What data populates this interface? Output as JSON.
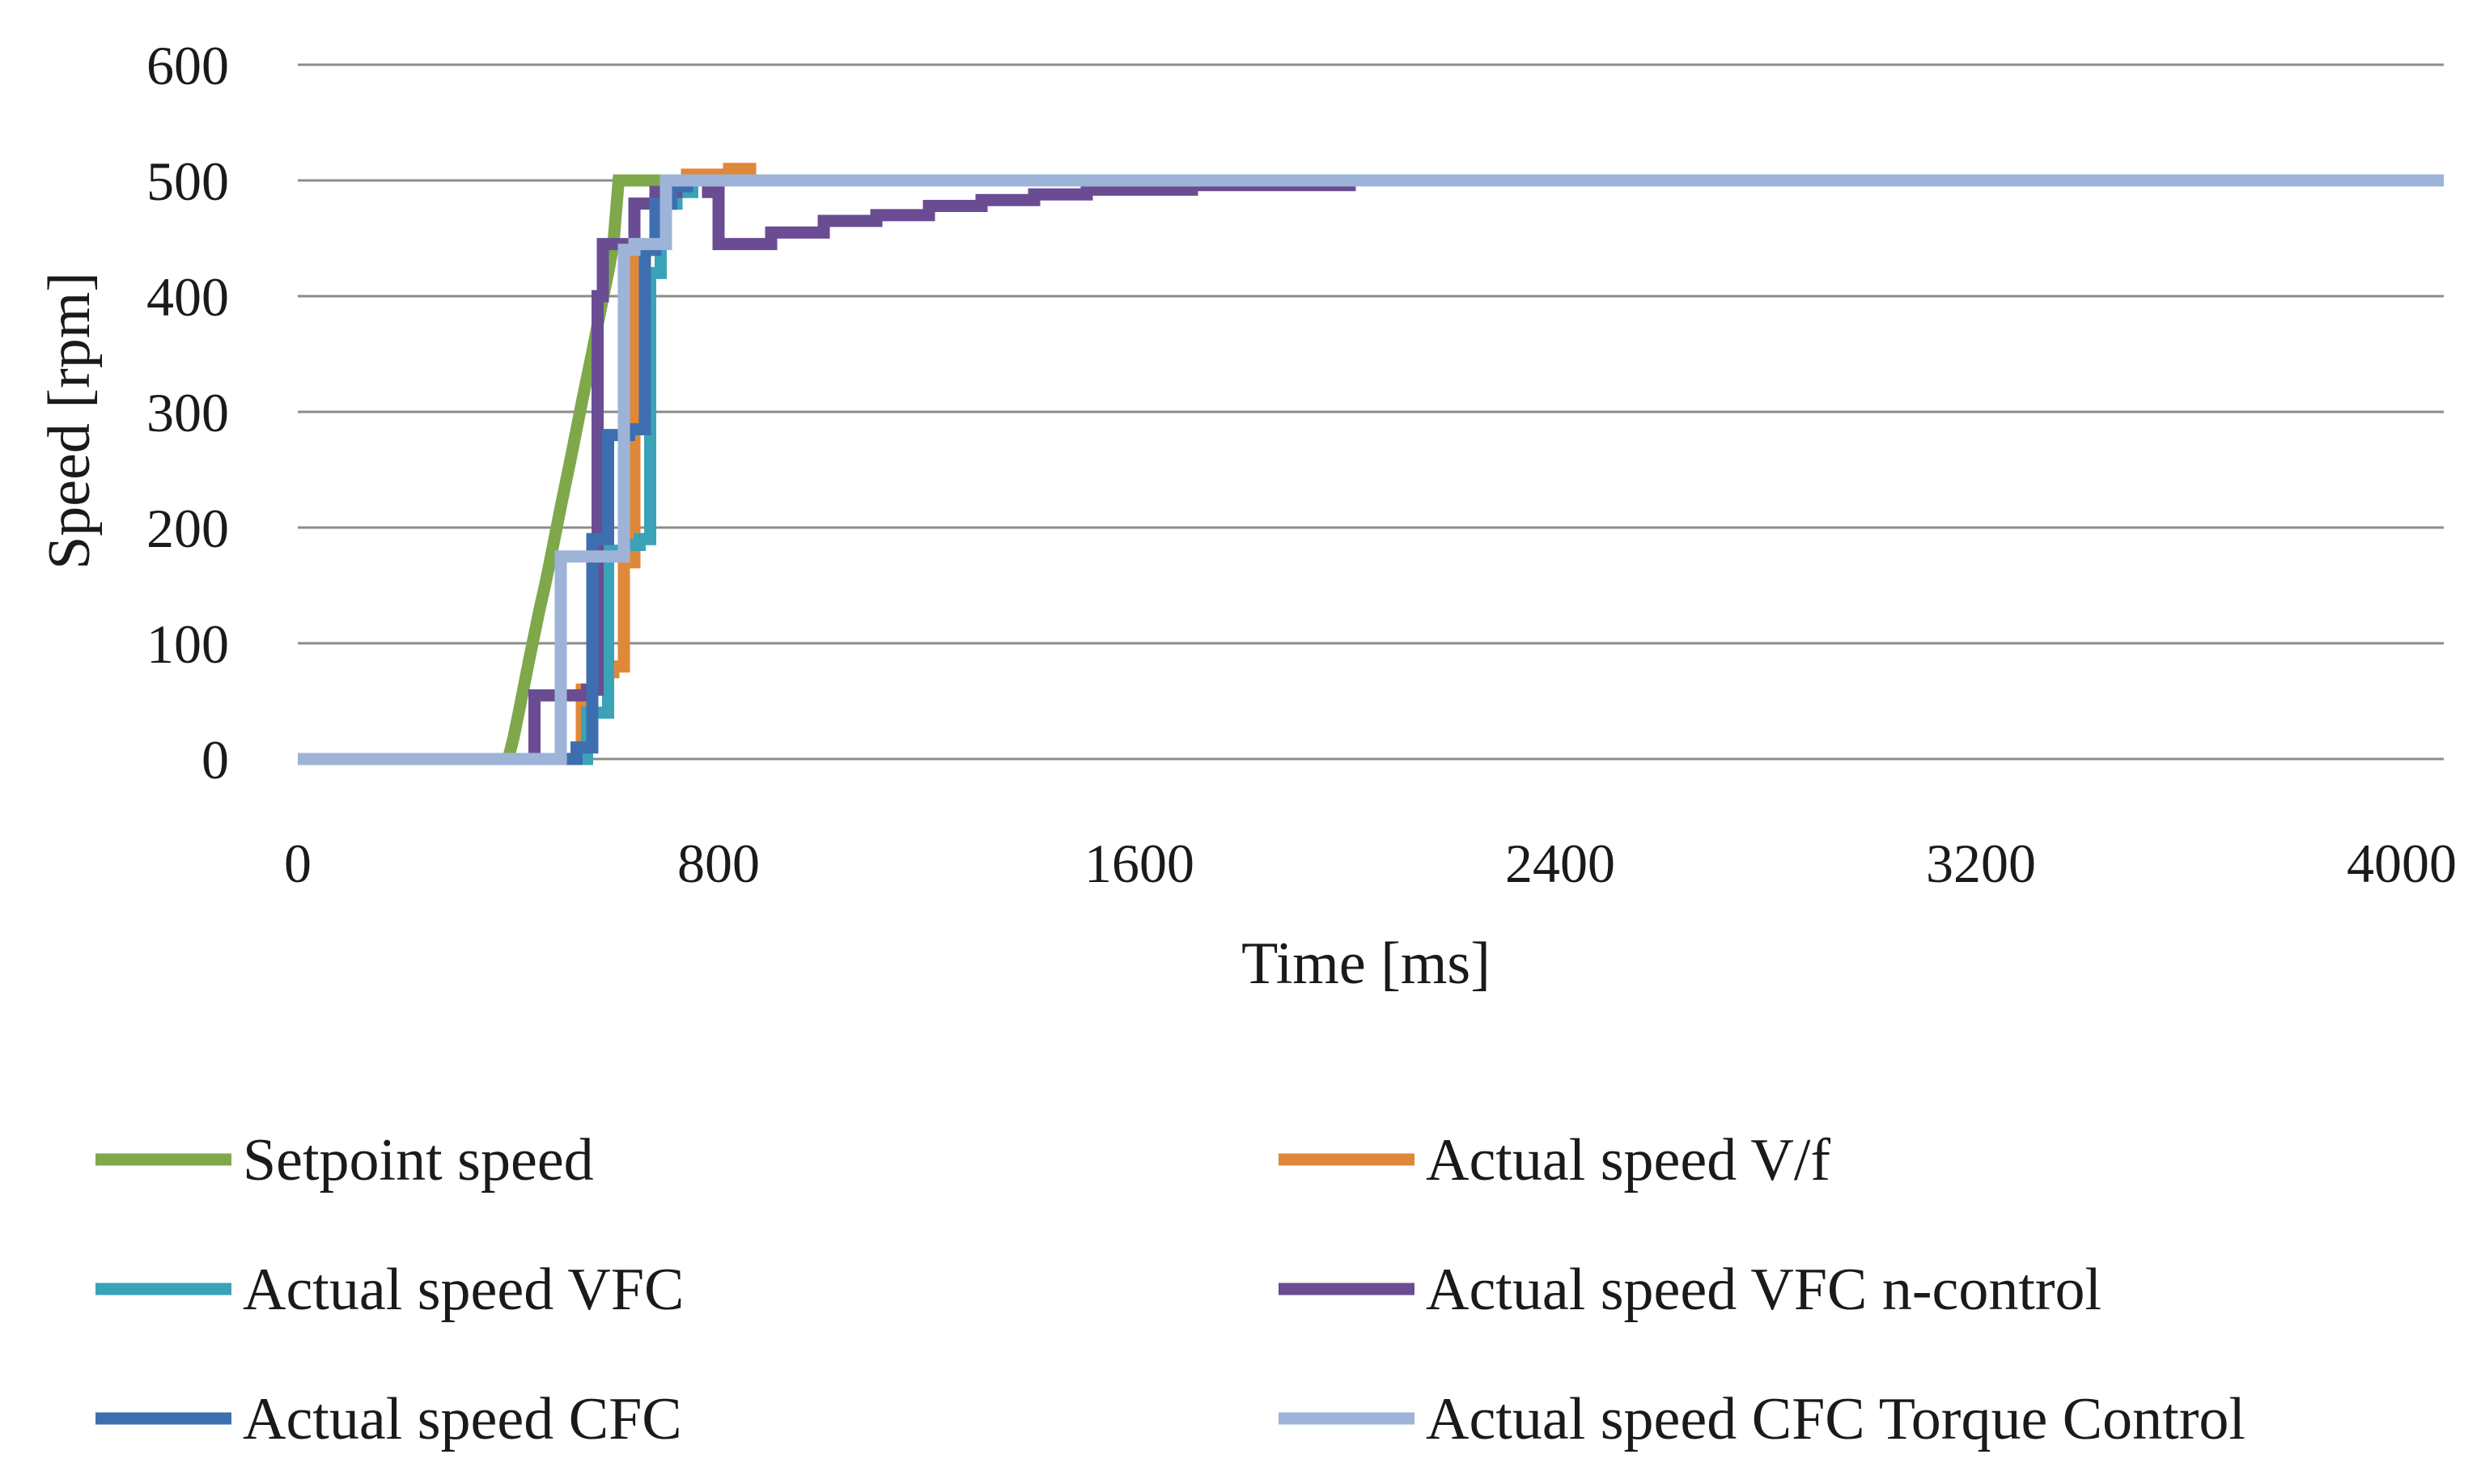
{
  "chart_data": {
    "type": "line",
    "title": "",
    "xlabel": "Time [ms]",
    "ylabel": "Speed [rpm]",
    "xlim": [
      0,
      4080
    ],
    "ylim": [
      0,
      600
    ],
    "xticks": [
      0,
      800,
      1600,
      2400,
      3200,
      4000
    ],
    "yticks": [
      0,
      100,
      200,
      300,
      400,
      500,
      600
    ],
    "grid": "horizontal",
    "legend_position": "bottom",
    "series": [
      {
        "name": "Setpoint speed",
        "color": "#7fa84a",
        "x": [
          0,
          400,
          410,
          420,
          430,
          440,
          450,
          460,
          470,
          480,
          490,
          500,
          510,
          520,
          530,
          540,
          550,
          560,
          570,
          580,
          590,
          600,
          610,
          4080
        ],
        "y": [
          0,
          0,
          18,
          40,
          63,
          86,
          108,
          130,
          150,
          172,
          195,
          218,
          240,
          262,
          285,
          308,
          330,
          352,
          375,
          398,
          420,
          445,
          500,
          500
        ]
      },
      {
        "name": "Actual speed V/f",
        "color": "#e0883a",
        "x": [
          0,
          540,
          540,
          580,
          580,
          600,
          600,
          620,
          620,
          640,
          640,
          680,
          680,
          700,
          700,
          720,
          720,
          740,
          740,
          820,
          820,
          860,
          860,
          4080
        ],
        "y": [
          0,
          0,
          60,
          60,
          75,
          75,
          80,
          80,
          170,
          170,
          440,
          440,
          450,
          450,
          480,
          480,
          495,
          495,
          505,
          505,
          510,
          510,
          500,
          500
        ]
      },
      {
        "name": "Actual speed VFC",
        "color": "#3aa3b8",
        "x": [
          0,
          550,
          550,
          590,
          590,
          620,
          620,
          650,
          650,
          670,
          670,
          690,
          690,
          720,
          720,
          750,
          750,
          4080
        ],
        "y": [
          0,
          0,
          40,
          40,
          180,
          180,
          185,
          185,
          190,
          190,
          420,
          420,
          480,
          480,
          490,
          490,
          500,
          500
        ]
      },
      {
        "name": "Actual speed VFC n-control",
        "color": "#6a4c93",
        "x": [
          0,
          450,
          450,
          550,
          550,
          570,
          570,
          580,
          580,
          640,
          640,
          680,
          680,
          720,
          720,
          780,
          780,
          800,
          800,
          900,
          900,
          1000,
          1000,
          1100,
          1100,
          1200,
          1200,
          1300,
          1300,
          1400,
          1400,
          1500,
          1500,
          1700,
          1700,
          2000,
          2000,
          4080
        ],
        "y": [
          0,
          0,
          55,
          55,
          60,
          60,
          400,
          400,
          445,
          445,
          480,
          480,
          490,
          490,
          500,
          500,
          490,
          490,
          445,
          445,
          455,
          455,
          465,
          465,
          470,
          470,
          478,
          478,
          483,
          483,
          488,
          488,
          492,
          492,
          496,
          496,
          500,
          500
        ]
      },
      {
        "name": "Actual speed CFC",
        "color": "#3d6fb0",
        "x": [
          0,
          530,
          530,
          560,
          560,
          590,
          590,
          630,
          630,
          660,
          660,
          680,
          680,
          710,
          710,
          740,
          740,
          4080
        ],
        "y": [
          0,
          0,
          10,
          10,
          190,
          190,
          280,
          280,
          285,
          285,
          440,
          440,
          480,
          480,
          495,
          495,
          500,
          500
        ]
      },
      {
        "name": "Actual speed CFC Torque Control",
        "color": "#9db4d8",
        "x": [
          0,
          500,
          500,
          510,
          510,
          620,
          620,
          640,
          640,
          700,
          700,
          720,
          720,
          4080
        ],
        "y": [
          0,
          0,
          175,
          175,
          175,
          175,
          440,
          440,
          445,
          445,
          500,
          500,
          500,
          500
        ]
      }
    ]
  }
}
